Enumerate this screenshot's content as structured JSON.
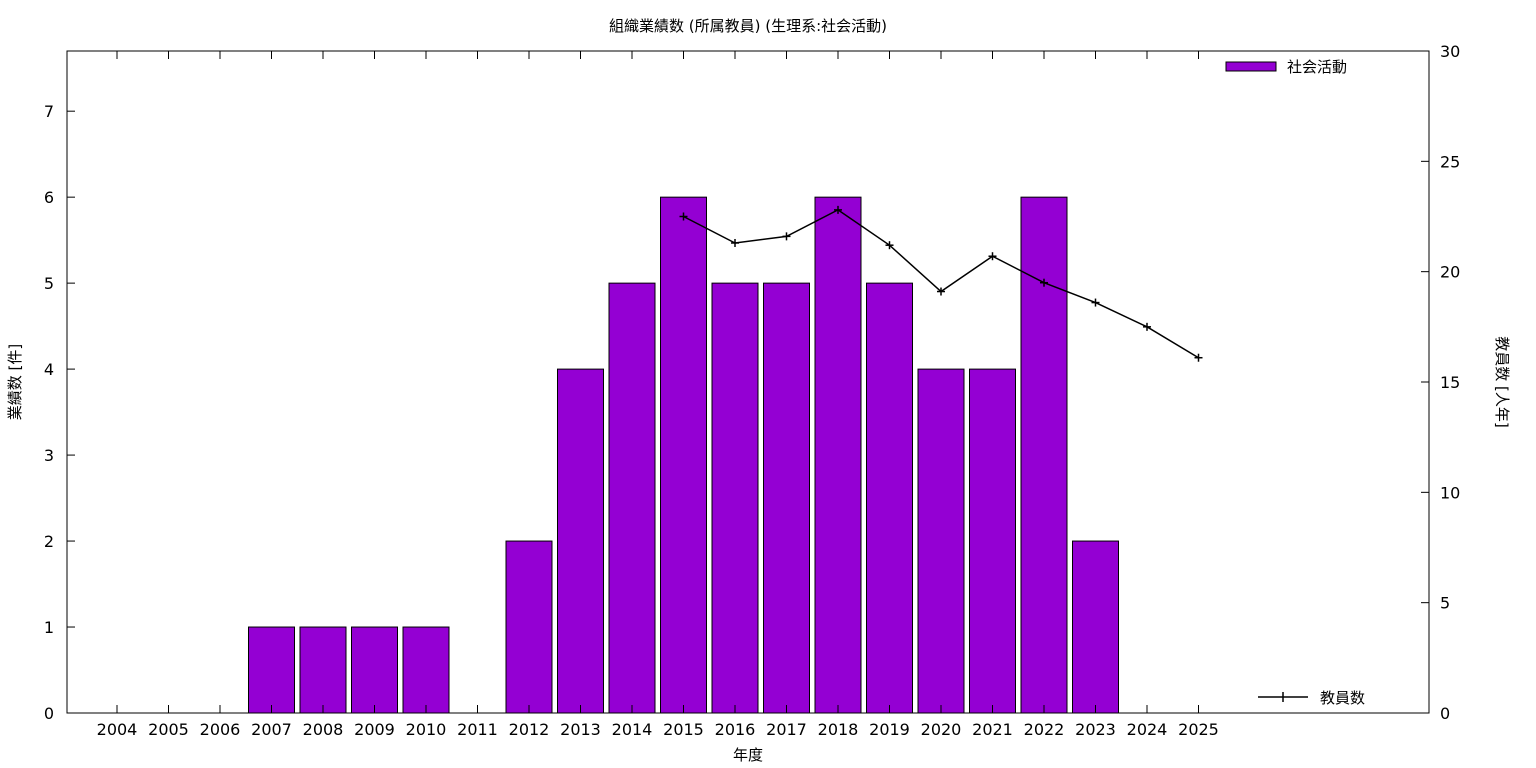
{
  "chart_data": {
    "type": "bar",
    "title": "組織業績数 (所属教員) (生理系:社会活動)",
    "xlabel": "年度",
    "ylabel": "業績数 [件]",
    "y2label": "教員数 [人年]",
    "categories": [
      "2004",
      "2005",
      "2006",
      "2007",
      "2008",
      "2009",
      "2010",
      "2011",
      "2012",
      "2013",
      "2014",
      "2015",
      "2016",
      "2017",
      "2018",
      "2019",
      "2020",
      "2021",
      "2022",
      "2023",
      "2024",
      "2025"
    ],
    "ylim": [
      0,
      7.7
    ],
    "yticks": [
      0,
      1,
      2,
      3,
      4,
      5,
      6,
      7
    ],
    "y2lim": [
      0,
      30
    ],
    "y2ticks": [
      0,
      5,
      10,
      15,
      20,
      25,
      30
    ],
    "grid": false,
    "legend_position": "top-right",
    "series": [
      {
        "name": "社会活動",
        "type": "bar",
        "axis": "left",
        "color": "#9400d3",
        "values": [
          0,
          0,
          0,
          1,
          1,
          1,
          1,
          0,
          2,
          4,
          5,
          6,
          5,
          5,
          6,
          5,
          4,
          4,
          6,
          2,
          0,
          0
        ]
      },
      {
        "name": "教員数",
        "type": "line",
        "axis": "right",
        "color": "#000000",
        "values": [
          null,
          null,
          null,
          null,
          null,
          null,
          null,
          null,
          null,
          null,
          null,
          22.5,
          21.3,
          21.6,
          22.8,
          21.2,
          19.1,
          20.7,
          19.5,
          18.6,
          17.5,
          16.1
        ]
      }
    ]
  }
}
